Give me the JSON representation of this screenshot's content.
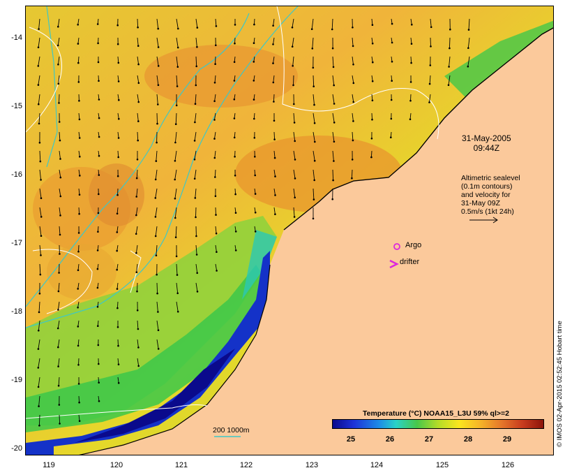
{
  "map": {
    "y_labels": [
      "-14",
      "-15",
      "-16",
      "-17",
      "-18",
      "-19",
      "-20"
    ],
    "x_labels": [
      "119",
      "120",
      "121",
      "122",
      "123",
      "124",
      "125",
      "126"
    ],
    "date": "31-May-2005",
    "time": "09:44Z",
    "altimetry_lines": [
      "Altimetric sealevel",
      "(0.1m contours)",
      "and velocity for",
      "31-May 09Z",
      "0.5m/s (1kt 24h)"
    ],
    "argo_label": "Argo",
    "drifter_label": "drifter",
    "depth_label": "200  1000m",
    "legend_title": "Temperature (°C) NOAA15_L3U 59% ql>=2",
    "colorbar_ticks": [
      "25",
      "26",
      "27",
      "28",
      "29"
    ],
    "credit": "© IMOS 02-Apr-2015 02:52:45 Hobart time",
    "colors": {
      "land": "#fbc99b",
      "warm": "#f2a028",
      "mid": "#e6dc28",
      "cool": "#5cc846",
      "coastal_blue": "#1432c8",
      "contour_cyan": "#3cc8c8",
      "argo_magenta": "#dc28dc"
    }
  }
}
